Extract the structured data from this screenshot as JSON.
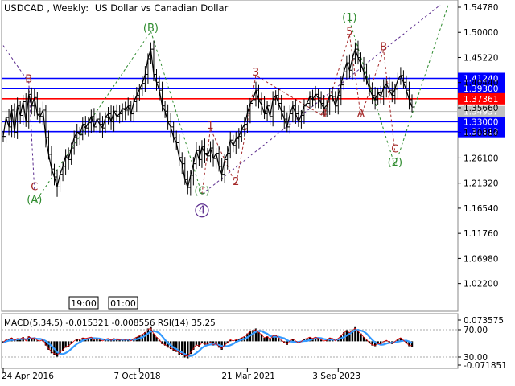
{
  "header": {
    "symbol": "USDCAD",
    "timeframe": "Weekly:",
    "description": "US Dollar vs Canadian Dollar"
  },
  "time_markers": [
    "19:00",
    "01:00"
  ],
  "colors": {
    "price_line": "#000000",
    "level_blue": "#0000ff",
    "level_red": "#ff0000",
    "wave_red": "#a52a2a",
    "wave_green": "#2e8b2e",
    "wave_purple": "#5b2c8e",
    "macd_hist": "#000000",
    "macd_signal": "#3399ff",
    "rsi_line": "#dd0000",
    "label_blue_bg": "#0000ff",
    "label_red_bg": "#ff0000",
    "label_gray_bg": "#c0c0c0"
  },
  "chart_data": [
    {
      "type": "line",
      "series_kind": "ohlc-bars",
      "y_axis_ticks": [
        "1.54780",
        "1.50000",
        "1.45220",
        "1.40440",
        "1.35660",
        "1.30880",
        "1.26100",
        "1.21320",
        "1.16540",
        "1.11760",
        "1.06980",
        "1.02200"
      ],
      "x_axis_ticks": [
        "24 Apr 2016",
        "7 Oct 2018",
        "21 Mar 2021",
        "3 Sep 2023"
      ],
      "ylim": [
        0.9725,
        1.5585
      ],
      "price_series": [
        1.302,
        1.338,
        1.32,
        1.352,
        1.31,
        1.36,
        1.342,
        1.368,
        1.33,
        1.382,
        1.36,
        1.376,
        1.344,
        1.34,
        1.352,
        1.3,
        1.268,
        1.24,
        1.225,
        1.206,
        1.23,
        1.245,
        1.265,
        1.258,
        1.28,
        1.3,
        1.31,
        1.305,
        1.325,
        1.318,
        1.328,
        1.34,
        1.32,
        1.335,
        1.325,
        1.318,
        1.338,
        1.345,
        1.33,
        1.35,
        1.34,
        1.345,
        1.355,
        1.352,
        1.36,
        1.345,
        1.368,
        1.38,
        1.392,
        1.403,
        1.42,
        1.45,
        1.468,
        1.42,
        1.405,
        1.39,
        1.36,
        1.35,
        1.33,
        1.32,
        1.3,
        1.29,
        1.262,
        1.25,
        1.22,
        1.205,
        1.228,
        1.25,
        1.275,
        1.258,
        1.282,
        1.27,
        1.265,
        1.28,
        1.26,
        1.27,
        1.245,
        1.23,
        1.258,
        1.27,
        1.295,
        1.285,
        1.298,
        1.302,
        1.315,
        1.325,
        1.346,
        1.365,
        1.372,
        1.39,
        1.372,
        1.362,
        1.345,
        1.36,
        1.34,
        1.372,
        1.38,
        1.365,
        1.35,
        1.335,
        1.32,
        1.345,
        1.36,
        1.345,
        1.33,
        1.342,
        1.36,
        1.365,
        1.378,
        1.372,
        1.382,
        1.375,
        1.365,
        1.355,
        1.362,
        1.38,
        1.378,
        1.36,
        1.38,
        1.4,
        1.425,
        1.442,
        1.428,
        1.45,
        1.468,
        1.452,
        1.44,
        1.425,
        1.41,
        1.392,
        1.38,
        1.372,
        1.385,
        1.378,
        1.395,
        1.402,
        1.39,
        1.38,
        1.392,
        1.41,
        1.418,
        1.405,
        1.39,
        1.372,
        1.358
      ],
      "levels": [
        {
          "value": 1.4124,
          "label": "1.41240",
          "color": "blue"
        },
        {
          "value": 1.393,
          "label": "1.39300",
          "color": "blue"
        },
        {
          "value": 1.37361,
          "label": "1.37361",
          "color": "red"
        },
        {
          "value": 1.33,
          "label": "1.33000",
          "color": "blue"
        },
        {
          "value": 1.31112,
          "label": "1.31112",
          "color": "blue"
        }
      ],
      "current_price": {
        "value": 1.34937,
        "label": "1.34937"
      },
      "wave_labels": [
        {
          "text": "(A)",
          "x_index": 11,
          "y": 1.175,
          "color": "green"
        },
        {
          "text": "C",
          "x_index": 11,
          "y": 1.2,
          "color": "red"
        },
        {
          "text": "B",
          "x_index": 9,
          "y": 1.405,
          "color": "red"
        },
        {
          "text": "(B)",
          "x_index": 52,
          "y": 1.502,
          "color": "green"
        },
        {
          "text": "(C)",
          "x_index": 70,
          "y": 1.192,
          "color": "green"
        },
        {
          "text": "4",
          "x_index": 70,
          "y": 1.155,
          "color": "purple"
        },
        {
          "text": "1",
          "x_index": 73,
          "y": 1.317,
          "color": "red"
        },
        {
          "text": "2",
          "x_index": 82,
          "y": 1.21,
          "color": "red"
        },
        {
          "text": "3",
          "x_index": 89,
          "y": 1.418,
          "color": "red"
        },
        {
          "text": "4",
          "x_index": 113,
          "y": 1.34,
          "color": "red"
        },
        {
          "text": "5",
          "x_index": 122,
          "y": 1.495,
          "color": "red"
        },
        {
          "text": "(1)",
          "x_index": 122,
          "y": 1.522,
          "color": "green"
        },
        {
          "text": "A",
          "x_index": 126,
          "y": 1.34,
          "color": "red"
        },
        {
          "text": "B",
          "x_index": 134,
          "y": 1.466,
          "color": "red"
        },
        {
          "text": "C",
          "x_index": 138,
          "y": 1.272,
          "color": "red"
        },
        {
          "text": "(2)",
          "x_index": 138,
          "y": 1.246,
          "color": "green"
        }
      ]
    },
    {
      "type": "line",
      "series_kind": "oscillator",
      "label": "MACD(5,34,5) -0.015321 -0.008556 RSI(14) 35.25",
      "ticks": [
        "0.073575",
        "70.00",
        "30.00",
        "-0.071851"
      ],
      "ylim": [
        -0.071851,
        0.073575
      ],
      "macd_main": [
        -0.004,
        0.004,
        0.006,
        0.01,
        0.002,
        0.008,
        0.006,
        0.012,
        0.0,
        0.014,
        0.008,
        0.01,
        0.002,
        0.0,
        0.004,
        -0.012,
        -0.024,
        -0.034,
        -0.04,
        -0.044,
        -0.036,
        -0.028,
        -0.018,
        -0.016,
        -0.008,
        0.0,
        0.006,
        0.004,
        0.01,
        0.008,
        0.01,
        0.012,
        0.004,
        0.008,
        0.004,
        0.0,
        0.006,
        0.008,
        0.002,
        0.008,
        0.004,
        0.004,
        0.006,
        0.004,
        0.006,
        0.0,
        0.008,
        0.012,
        0.016,
        0.02,
        0.026,
        0.036,
        0.04,
        0.022,
        0.012,
        0.004,
        -0.008,
        -0.012,
        -0.018,
        -0.022,
        -0.028,
        -0.03,
        -0.038,
        -0.04,
        -0.046,
        -0.048,
        -0.036,
        -0.024,
        -0.012,
        -0.016,
        -0.006,
        -0.01,
        -0.01,
        -0.004,
        -0.012,
        -0.008,
        -0.018,
        -0.024,
        -0.012,
        -0.006,
        0.004,
        0.0,
        0.004,
        0.006,
        0.01,
        0.014,
        0.022,
        0.03,
        0.032,
        0.036,
        0.026,
        0.02,
        0.01,
        0.014,
        0.006,
        0.016,
        0.018,
        0.01,
        0.002,
        -0.004,
        -0.01,
        0.0,
        0.006,
        0.0,
        -0.006,
        -0.002,
        0.006,
        0.008,
        0.012,
        0.008,
        0.012,
        0.008,
        0.004,
        0.0,
        0.002,
        0.01,
        0.008,
        0.0,
        0.008,
        0.016,
        0.026,
        0.032,
        0.026,
        0.034,
        0.04,
        0.03,
        0.022,
        0.012,
        0.004,
        -0.006,
        -0.012,
        -0.014,
        -0.008,
        -0.01,
        -0.002,
        0.002,
        -0.004,
        -0.008,
        -0.002,
        0.006,
        0.01,
        0.002,
        -0.006,
        -0.014,
        -0.015
      ]
    }
  ]
}
